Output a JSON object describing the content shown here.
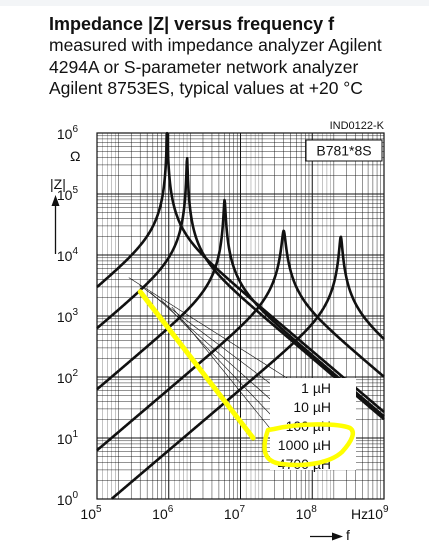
{
  "header": {
    "title": "Impedance |Z| versus frequency f",
    "description": "measured with impedance analyzer Agilent\n4294A or S-parameter network analyzer\nAgilent 8753ES, typical values at +20 °C"
  },
  "chart_data": {
    "type": "line",
    "doc_code": "IND0122-K",
    "part_number": "B781*8S",
    "xlabel": "f",
    "x_unit": "Hz",
    "ylabel": "|Z|",
    "y_unit": "Ω",
    "x_scale": "log",
    "y_scale": "log",
    "xlim": [
      100000,
      1000000000
    ],
    "ylim": [
      1,
      1000000
    ],
    "x_ticks": [
      {
        "base": "10",
        "exp": "5"
      },
      {
        "base": "10",
        "exp": "6"
      },
      {
        "base": "10",
        "exp": "7"
      },
      {
        "base": "10",
        "exp": "8"
      },
      {
        "base": "10",
        "exp": "9"
      }
    ],
    "y_ticks": [
      {
        "base": "10",
        "exp": "0"
      },
      {
        "base": "10",
        "exp": "1"
      },
      {
        "base": "10",
        "exp": "2"
      },
      {
        "base": "10",
        "exp": "3"
      },
      {
        "base": "10",
        "exp": "4"
      },
      {
        "base": "10",
        "exp": "5"
      },
      {
        "base": "10",
        "exp": "6"
      }
    ],
    "grid": true,
    "legend_position": "right-center",
    "legend": [
      "1 µH",
      "10 µH",
      "100 µH",
      "1000 µH",
      "4700 µH"
    ],
    "series": [
      {
        "name": "1 µH",
        "inductance_h": 1e-06,
        "resonance_hz": 250000000,
        "peak_ohm": 20000
      },
      {
        "name": "10 µH",
        "inductance_h": 1e-05,
        "resonance_hz": 40000000,
        "peak_ohm": 25000
      },
      {
        "name": "100 µH",
        "inductance_h": 0.0001,
        "resonance_hz": 6000000,
        "peak_ohm": 80000
      },
      {
        "name": "1000 µH",
        "inductance_h": 0.001,
        "resonance_hz": 1800000,
        "peak_ohm": 400000
      },
      {
        "name": "4700 µH",
        "inductance_h": 0.0047,
        "resonance_hz": 950000,
        "peak_ohm": 1000000
      }
    ],
    "highlight": {
      "color": "#ffff00",
      "line_start": {
        "x": 400000,
        "y": 2500
      },
      "line_end": {
        "x": 15000000,
        "y": 10
      },
      "circled_label": "1000 µH"
    }
  }
}
